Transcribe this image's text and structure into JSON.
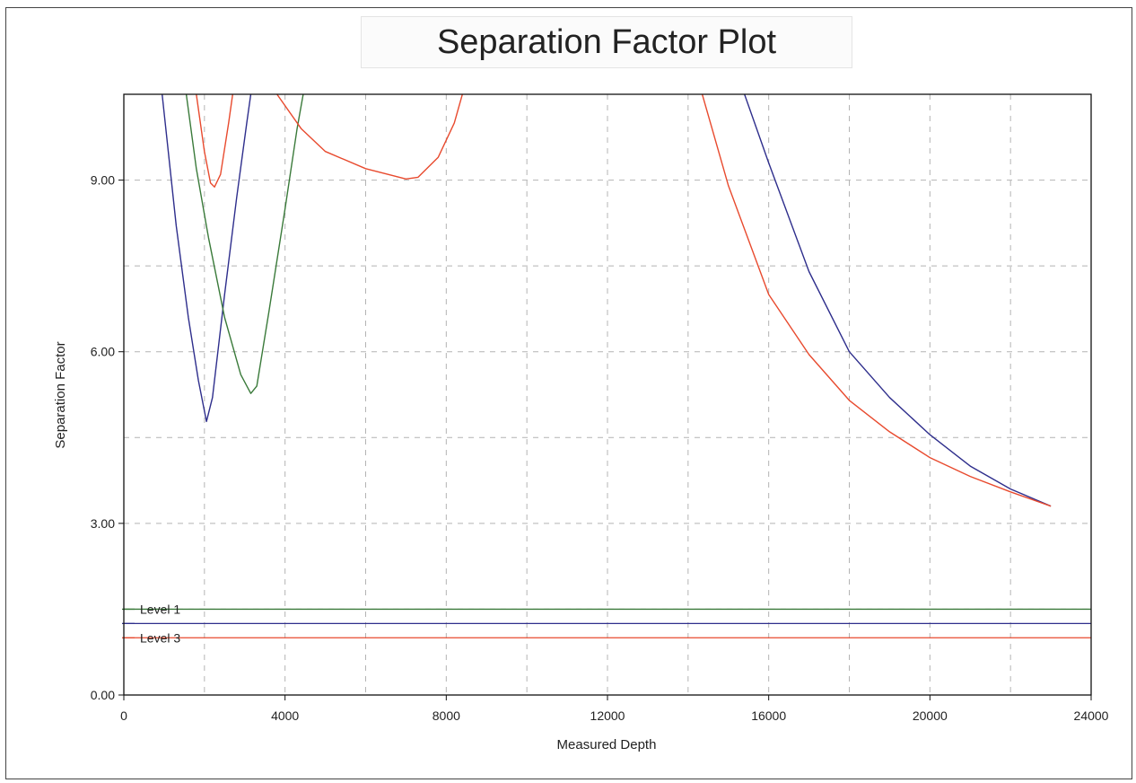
{
  "chart_data": {
    "type": "line",
    "title": "Separation Factor Plot",
    "xlabel": "Measured Depth",
    "ylabel": "Separation Factor",
    "xlim": [
      0,
      24000
    ],
    "ylim": [
      0,
      10.5
    ],
    "x_ticks": [
      "0",
      "4000",
      "8000",
      "12000",
      "16000",
      "20000",
      "24000"
    ],
    "y_ticks": [
      "0.00",
      "3.00",
      "6.00",
      "9.00"
    ],
    "grid": true,
    "legend": "none",
    "series": [
      {
        "color": "#2e2e8c",
        "segments": [
          [
            [
              950,
              10.5
            ],
            [
              1300,
              8.2
            ],
            [
              1600,
              6.6
            ],
            [
              1850,
              5.5
            ],
            [
              2050,
              4.78
            ],
            [
              2200,
              5.2
            ],
            [
              2500,
              7.0
            ],
            [
              2800,
              8.7
            ],
            [
              3050,
              10.0
            ],
            [
              3150,
              10.5
            ]
          ],
          [
            [
              15400,
              10.5
            ],
            [
              16000,
              9.3
            ],
            [
              17000,
              7.4
            ],
            [
              18000,
              6.0
            ],
            [
              19000,
              5.2
            ],
            [
              20000,
              4.55
            ],
            [
              21000,
              4.0
            ],
            [
              22000,
              3.6
            ],
            [
              23000,
              3.3
            ]
          ]
        ]
      },
      {
        "color": "#3a7a3a",
        "segments": [
          [
            [
              1550,
              10.5
            ],
            [
              1800,
              9.2
            ],
            [
              2100,
              8.0
            ],
            [
              2500,
              6.6
            ],
            [
              2900,
              5.6
            ],
            [
              3150,
              5.27
            ],
            [
              3300,
              5.4
            ],
            [
              3600,
              6.7
            ],
            [
              4000,
              8.5
            ],
            [
              4300,
              9.9
            ],
            [
              4450,
              10.5
            ]
          ]
        ]
      },
      {
        "color": "#e84a2e",
        "segments": [
          [
            [
              1800,
              10.5
            ],
            [
              2000,
              9.5
            ],
            [
              2150,
              8.95
            ],
            [
              2250,
              8.88
            ],
            [
              2400,
              9.1
            ],
            [
              2600,
              10.0
            ],
            [
              2700,
              10.5
            ]
          ],
          [
            [
              3800,
              10.5
            ],
            [
              4400,
              9.9
            ],
            [
              5000,
              9.5
            ],
            [
              6000,
              9.2
            ],
            [
              7000,
              9.02
            ],
            [
              7300,
              9.05
            ],
            [
              7800,
              9.4
            ],
            [
              8200,
              10.0
            ],
            [
              8400,
              10.5
            ]
          ],
          [
            [
              14350,
              10.5
            ],
            [
              15000,
              8.9
            ],
            [
              16000,
              7.0
            ],
            [
              17000,
              5.95
            ],
            [
              18000,
              5.15
            ],
            [
              19000,
              4.6
            ],
            [
              20000,
              4.15
            ],
            [
              21000,
              3.82
            ],
            [
              22000,
              3.55
            ],
            [
              23000,
              3.3
            ]
          ]
        ]
      }
    ],
    "levels": [
      {
        "label": "Level 1",
        "value": 1.5,
        "color": "#3a7a3a"
      },
      {
        "label": "",
        "value": 1.25,
        "color": "#2e2e8c"
      },
      {
        "label": "Level 3",
        "value": 1.0,
        "color": "#e84a2e"
      }
    ]
  }
}
